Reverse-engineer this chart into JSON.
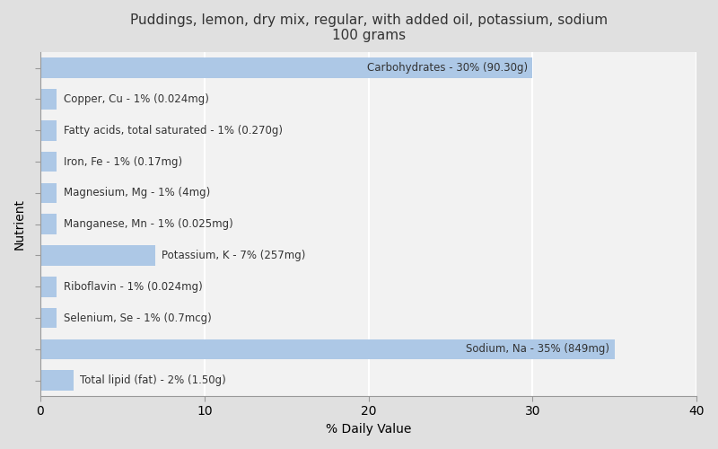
{
  "title_line1": "Puddings, lemon, dry mix, regular, with added oil, potassium, sodium",
  "title_line2": "100 grams",
  "xlabel": "% Daily Value",
  "ylabel": "Nutrient",
  "nutrients": [
    "Carbohydrates - 30% (90.30g)",
    "Copper, Cu - 1% (0.024mg)",
    "Fatty acids, total saturated - 1% (0.270g)",
    "Iron, Fe - 1% (0.17mg)",
    "Magnesium, Mg - 1% (4mg)",
    "Manganese, Mn - 1% (0.025mg)",
    "Potassium, K - 7% (257mg)",
    "Riboflavin - 1% (0.024mg)",
    "Selenium, Se - 1% (0.7mcg)",
    "Sodium, Na - 35% (849mg)",
    "Total lipid (fat) - 2% (1.50g)"
  ],
  "values": [
    30,
    1,
    1,
    1,
    1,
    1,
    7,
    1,
    1,
    35,
    2
  ],
  "label_inside_threshold": 10,
  "bar_color": "#adc8e6",
  "bg_color": "#e0e0e0",
  "plot_bg_color": "#f2f2f2",
  "text_color": "#333333",
  "bar_label_color": "#333333",
  "xlim": [
    0,
    40
  ],
  "xticks": [
    0,
    10,
    20,
    30,
    40
  ],
  "grid_color": "#ffffff",
  "title_fontsize": 11,
  "label_fontsize": 8.5,
  "axis_fontsize": 10
}
